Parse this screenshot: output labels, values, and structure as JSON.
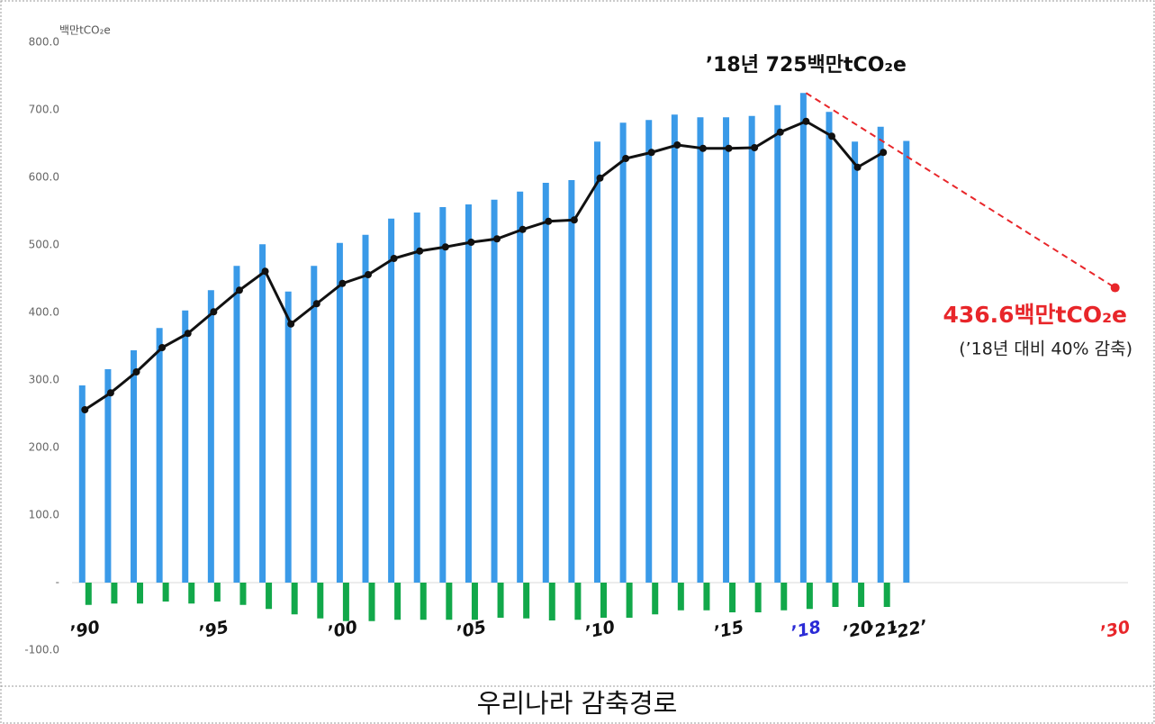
{
  "chart_data": {
    "type": "bar",
    "unit_label": "백만tCO₂e",
    "caption": "우리나라 감축경로",
    "x": [
      1990,
      1991,
      1992,
      1993,
      1994,
      1995,
      1996,
      1997,
      1998,
      1999,
      2000,
      2001,
      2002,
      2003,
      2004,
      2005,
      2006,
      2007,
      2008,
      2009,
      2010,
      2011,
      2012,
      2013,
      2014,
      2015,
      2016,
      2017,
      2018,
      2019,
      2020,
      2021,
      2022
    ],
    "series": [
      {
        "type": "bar",
        "color": "#3a9ae8",
        "values": [
          292,
          316,
          344,
          377,
          403,
          433,
          469,
          501,
          431,
          469,
          503,
          515,
          539,
          548,
          556,
          560,
          567,
          579,
          592,
          596,
          653,
          681,
          685,
          693,
          689,
          689,
          691,
          707,
          725,
          697,
          653,
          675,
          654
        ]
      },
      {
        "type": "line",
        "color": "#111111",
        "values": [
          256,
          281,
          312,
          348,
          369,
          401,
          433,
          461,
          383,
          413,
          443,
          456,
          480,
          491,
          497,
          504,
          509,
          523,
          535,
          537,
          599,
          628,
          637,
          648,
          643,
          643,
          644,
          667,
          683,
          661,
          615,
          637,
          null
        ]
      },
      {
        "type": "bar",
        "color": "#12a84a",
        "values": [
          -33,
          -31,
          -31,
          -28,
          -31,
          -28,
          -33,
          -39,
          -47,
          -53,
          -57,
          -57,
          -55,
          -55,
          -55,
          -55,
          -52,
          -53,
          -56,
          -55,
          -52,
          -52,
          -47,
          -41,
          -41,
          -44,
          -44,
          -41,
          -39,
          -36,
          -36,
          -36,
          null
        ]
      }
    ],
    "target": {
      "color": "#e8262a",
      "x": [
        2018,
        2030
      ],
      "values": [
        725,
        436.6
      ]
    },
    "annotations": [
      {
        "text": "’18년 725백만tCO₂e",
        "color": "#111111"
      },
      {
        "text": "436.6백만tCO₂e",
        "color": "#e8262a"
      },
      {
        "text": "(’18년 대비 40% 감축)",
        "color": "#222222"
      }
    ],
    "xlim": [
      1989.5,
      2030.5
    ],
    "xticks": [
      {
        "value": 1990,
        "label": "’90"
      },
      {
        "value": 1995,
        "label": "’95"
      },
      {
        "value": 2000,
        "label": "’00"
      },
      {
        "value": 2005,
        "label": "’05"
      },
      {
        "value": 2010,
        "label": "’10"
      },
      {
        "value": 2015,
        "label": "’15"
      },
      {
        "value": 2018,
        "label": "’18",
        "color": "#2b2bd6"
      },
      {
        "value": 2020,
        "label": "’20"
      },
      {
        "value": 2021,
        "label": "’21"
      },
      {
        "value": 2022,
        "label": "’22’"
      },
      {
        "value": 2030,
        "label": "’30",
        "color": "#e8262a"
      }
    ],
    "ylim": [
      -100,
      800
    ],
    "yticks": [
      {
        "value": -100,
        "label": "-100.0"
      },
      {
        "value": 0,
        "label": "-"
      },
      {
        "value": 100,
        "label": "100.0"
      },
      {
        "value": 200,
        "label": "200.0"
      },
      {
        "value": 300,
        "label": "300.0"
      },
      {
        "value": 400,
        "label": "400.0"
      },
      {
        "value": 500,
        "label": "500.0"
      },
      {
        "value": 600,
        "label": "600.0"
      },
      {
        "value": 700,
        "label": "700.0"
      },
      {
        "value": 800,
        "label": "800.0"
      }
    ]
  }
}
